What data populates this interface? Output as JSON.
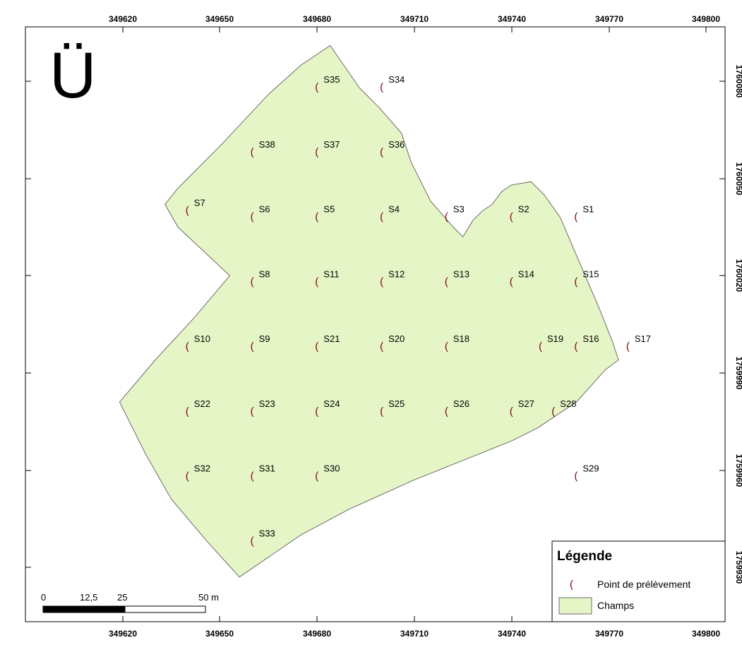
{
  "map": {
    "north_arrow": "Ü",
    "x_ticks": [
      "349620",
      "349650",
      "349680",
      "349710",
      "349740",
      "349770",
      "349800"
    ],
    "y_ticks": [
      "1760080",
      "1760050",
      "1760020",
      "1759990",
      "1759960",
      "1759930"
    ],
    "field_color": "#e5f5c5",
    "point_color": "#7a0a0a",
    "points": [
      {
        "label": "S35",
        "e": 349680,
        "n": 1760078
      },
      {
        "label": "S34",
        "e": 349700,
        "n": 1760078
      },
      {
        "label": "S38",
        "e": 349660,
        "n": 1760058
      },
      {
        "label": "S37",
        "e": 349680,
        "n": 1760058
      },
      {
        "label": "S36",
        "e": 349700,
        "n": 1760058
      },
      {
        "label": "S7",
        "e": 349640,
        "n": 1760040
      },
      {
        "label": "S6",
        "e": 349660,
        "n": 1760038
      },
      {
        "label": "S5",
        "e": 349680,
        "n": 1760038
      },
      {
        "label": "S4",
        "e": 349700,
        "n": 1760038
      },
      {
        "label": "S3",
        "e": 349720,
        "n": 1760038
      },
      {
        "label": "S2",
        "e": 349740,
        "n": 1760038
      },
      {
        "label": "S1",
        "e": 349760,
        "n": 1760038
      },
      {
        "label": "S8",
        "e": 349660,
        "n": 1760018
      },
      {
        "label": "S11",
        "e": 349680,
        "n": 1760018
      },
      {
        "label": "S12",
        "e": 349700,
        "n": 1760018
      },
      {
        "label": "S13",
        "e": 349720,
        "n": 1760018
      },
      {
        "label": "S14",
        "e": 349740,
        "n": 1760018
      },
      {
        "label": "S15",
        "e": 349760,
        "n": 1760018
      },
      {
        "label": "S10",
        "e": 349640,
        "n": 1759998
      },
      {
        "label": "S9",
        "e": 349660,
        "n": 1759998
      },
      {
        "label": "S21",
        "e": 349680,
        "n": 1759998
      },
      {
        "label": "S20",
        "e": 349700,
        "n": 1759998
      },
      {
        "label": "S18",
        "e": 349720,
        "n": 1759998
      },
      {
        "label": "S19",
        "e": 349749,
        "n": 1759998
      },
      {
        "label": "S16",
        "e": 349760,
        "n": 1759998
      },
      {
        "label": "S17",
        "e": 349776,
        "n": 1759998
      },
      {
        "label": "S22",
        "e": 349640,
        "n": 1759978
      },
      {
        "label": "S23",
        "e": 349660,
        "n": 1759978
      },
      {
        "label": "S24",
        "e": 349680,
        "n": 1759978
      },
      {
        "label": "S25",
        "e": 349700,
        "n": 1759978
      },
      {
        "label": "S26",
        "e": 349720,
        "n": 1759978
      },
      {
        "label": "S27",
        "e": 349740,
        "n": 1759978
      },
      {
        "label": "S28",
        "e": 349753,
        "n": 1759978
      },
      {
        "label": "S32",
        "e": 349640,
        "n": 1759958
      },
      {
        "label": "S31",
        "e": 349660,
        "n": 1759958
      },
      {
        "label": "S30",
        "e": 349680,
        "n": 1759958
      },
      {
        "label": "S29",
        "e": 349760,
        "n": 1759958
      },
      {
        "label": "S33",
        "e": 349660,
        "n": 1759938
      }
    ],
    "field_boundary": [
      [
        349684,
        1760091
      ],
      [
        349693,
        1760078
      ],
      [
        349699,
        1760072
      ],
      [
        349706,
        1760064
      ],
      [
        349709,
        1760055
      ],
      [
        349715,
        1760043
      ],
      [
        349722,
        1760035
      ],
      [
        349725,
        1760032
      ],
      [
        349728,
        1760037
      ],
      [
        349731,
        1760040
      ],
      [
        349734,
        1760042
      ],
      [
        349737,
        1760046
      ],
      [
        349740,
        1760048
      ],
      [
        349746,
        1760049
      ],
      [
        349750,
        1760045
      ],
      [
        349755,
        1760038
      ],
      [
        349761,
        1760024
      ],
      [
        349767,
        1760010
      ],
      [
        349771,
        1760000
      ],
      [
        349773,
        1759994
      ],
      [
        349769,
        1759991
      ],
      [
        349760,
        1759981
      ],
      [
        349748,
        1759973
      ],
      [
        349740,
        1759969
      ],
      [
        349710,
        1759957
      ],
      [
        349690,
        1759948
      ],
      [
        349675,
        1759940
      ],
      [
        349656,
        1759927
      ],
      [
        349646,
        1759938
      ],
      [
        349635,
        1759951
      ],
      [
        349627,
        1759965
      ],
      [
        349619,
        1759981
      ],
      [
        349630,
        1759994
      ],
      [
        349642,
        1760007
      ],
      [
        349653,
        1760020
      ],
      [
        349637,
        1760035
      ],
      [
        349633,
        1760042
      ],
      [
        349637,
        1760047
      ],
      [
        349650,
        1760060
      ],
      [
        349665,
        1760076
      ],
      [
        349675,
        1760085
      ]
    ]
  },
  "scale_bar": {
    "labels": [
      "0",
      "12,5",
      "25",
      "50 m"
    ]
  },
  "legend": {
    "title": "Légende",
    "items": [
      {
        "label": "Point de prélèvement"
      },
      {
        "label": "Champs"
      }
    ]
  }
}
